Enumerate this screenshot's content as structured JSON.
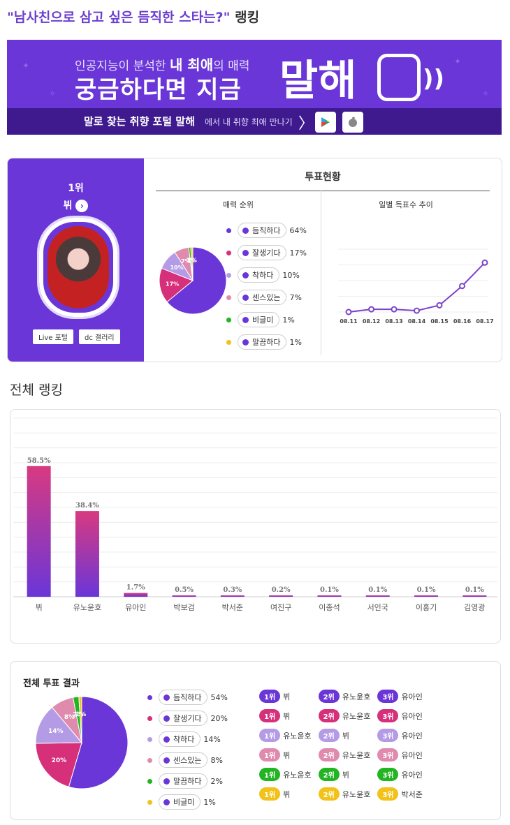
{
  "page_title": {
    "quote": "\"남사친으로 삼고 싶은 듬직한 스타는?\"",
    "suffix": "랭킹"
  },
  "banner": {
    "line1_pre": "인공지능이 분석한 ",
    "line1_bold": "내 최애",
    "line1_post": "의 매력",
    "line2": "궁금하다면 지금",
    "big": "말해",
    "sub_bold": "말로 찾는 취향 포털 말해",
    "sub_text": "에서 내 취향 최애 만나기",
    "chevron": "〉",
    "icons": [
      "google-play-icon",
      "apple-icon"
    ]
  },
  "top_card": {
    "rank_label": "1위",
    "name": "뷔",
    "name_arrow": "›",
    "buttons": [
      "Live 포털",
      "dc 갤러리"
    ],
    "vote_title": "투표현황",
    "charm_title": "매력 순위",
    "trend_title": "일별 득표수 추이",
    "legend": [
      {
        "label": "듬직하다",
        "pct": "64%",
        "color": "#6a36d8"
      },
      {
        "label": "잘생기다",
        "pct": "17%",
        "color": "#d6307a"
      },
      {
        "label": "착하다",
        "pct": "10%",
        "color": "#b49be6"
      },
      {
        "label": "센스있는",
        "pct": "7%",
        "color": "#e08aae"
      },
      {
        "label": "비글미",
        "pct": "1%",
        "color": "#22b422"
      },
      {
        "label": "말끔하다",
        "pct": "1%",
        "color": "#f2c21a"
      }
    ]
  },
  "section_title": "전체 랭킹",
  "bottom_card": {
    "title": "전체 투표 결과",
    "legend": [
      {
        "label": "듬직하다",
        "pct": "54%",
        "color": "#6a36d8"
      },
      {
        "label": "잘생기다",
        "pct": "20%",
        "color": "#d6307a"
      },
      {
        "label": "착하다",
        "pct": "14%",
        "color": "#b49be6"
      },
      {
        "label": "센스있는",
        "pct": "8%",
        "color": "#e08aae"
      },
      {
        "label": "말끔하다",
        "pct": "2%",
        "color": "#22b422"
      },
      {
        "label": "비글미",
        "pct": "1%",
        "color": "#f2c21a"
      }
    ],
    "rank_rows": [
      {
        "color": "#6a36d8",
        "cells": [
          {
            "rank": "1위",
            "name": "뷔"
          },
          {
            "rank": "2위",
            "name": "유노윤호"
          },
          {
            "rank": "3위",
            "name": "유아인"
          }
        ]
      },
      {
        "color": "#d6307a",
        "cells": [
          {
            "rank": "1위",
            "name": "뷔"
          },
          {
            "rank": "2위",
            "name": "유노윤호"
          },
          {
            "rank": "3위",
            "name": "유아인"
          }
        ]
      },
      {
        "color": "#b49be6",
        "cells": [
          {
            "rank": "1위",
            "name": "유노윤호"
          },
          {
            "rank": "2위",
            "name": "뷔"
          },
          {
            "rank": "3위",
            "name": "유아인"
          }
        ]
      },
      {
        "color": "#e08aae",
        "cells": [
          {
            "rank": "1위",
            "name": "뷔"
          },
          {
            "rank": "2위",
            "name": "유노윤호"
          },
          {
            "rank": "3위",
            "name": "유아인"
          }
        ]
      },
      {
        "color": "#22b422",
        "cells": [
          {
            "rank": "1위",
            "name": "유노윤호"
          },
          {
            "rank": "2위",
            "name": "뷔"
          },
          {
            "rank": "3위",
            "name": "유아인"
          }
        ]
      },
      {
        "color": "#f2c21a",
        "cells": [
          {
            "rank": "1위",
            "name": "뷔"
          },
          {
            "rank": "2위",
            "name": "유노윤호"
          },
          {
            "rank": "3위",
            "name": "박서준"
          }
        ]
      }
    ]
  },
  "chart_data": [
    {
      "type": "pie",
      "title": "매력 순위",
      "labels": [
        "듬직하다",
        "잘생기다",
        "착하다",
        "센스있는",
        "비글미",
        "말끔하다"
      ],
      "values": [
        64,
        17,
        10,
        7,
        1,
        1
      ],
      "slice_labels": [
        "",
        "17%",
        "10%",
        "7%",
        "1%",
        "1%"
      ],
      "colors": [
        "#6a36d8",
        "#d6307a",
        "#b49be6",
        "#e08aae",
        "#22b422",
        "#f2c21a"
      ]
    },
    {
      "type": "line",
      "title": "일별 득표수 추이",
      "x": [
        "08.11",
        "08.12",
        "08.13",
        "08.14",
        "08.15",
        "08.16",
        "08.17"
      ],
      "values": [
        0,
        6,
        6,
        3,
        15,
        58,
        110
      ],
      "ylim": [
        0,
        140
      ],
      "grid": true,
      "color": "#7b44c9"
    },
    {
      "type": "bar",
      "title": "전체 랭킹",
      "categories": [
        "뷔",
        "유노윤호",
        "유아인",
        "박보검",
        "박서준",
        "여진구",
        "이종석",
        "서인국",
        "이홍기",
        "김영광"
      ],
      "values": [
        58.5,
        38.4,
        1.7,
        0.5,
        0.3,
        0.2,
        0.1,
        0.1,
        0.1,
        0.1
      ],
      "data_labels": [
        "58.5%",
        "38.4%",
        "1.7%",
        "0.5%",
        "0.3%",
        "0.2%",
        "0.1%",
        "0.1%",
        "0.1%",
        "0.1%"
      ],
      "ylim": [
        0,
        80
      ],
      "grid": true
    },
    {
      "type": "pie",
      "title": "전체 투표 결과",
      "labels": [
        "듬직하다",
        "잘생기다",
        "착하다",
        "센스있는",
        "말끔하다",
        "비글미"
      ],
      "values": [
        54,
        20,
        14,
        8,
        2,
        1
      ],
      "slice_labels": [
        "",
        "20%",
        "14%",
        "8%",
        "2%",
        "1%"
      ],
      "colors": [
        "#6a36d8",
        "#d6307a",
        "#b49be6",
        "#e08aae",
        "#22b422",
        "#f2c21a"
      ]
    }
  ]
}
